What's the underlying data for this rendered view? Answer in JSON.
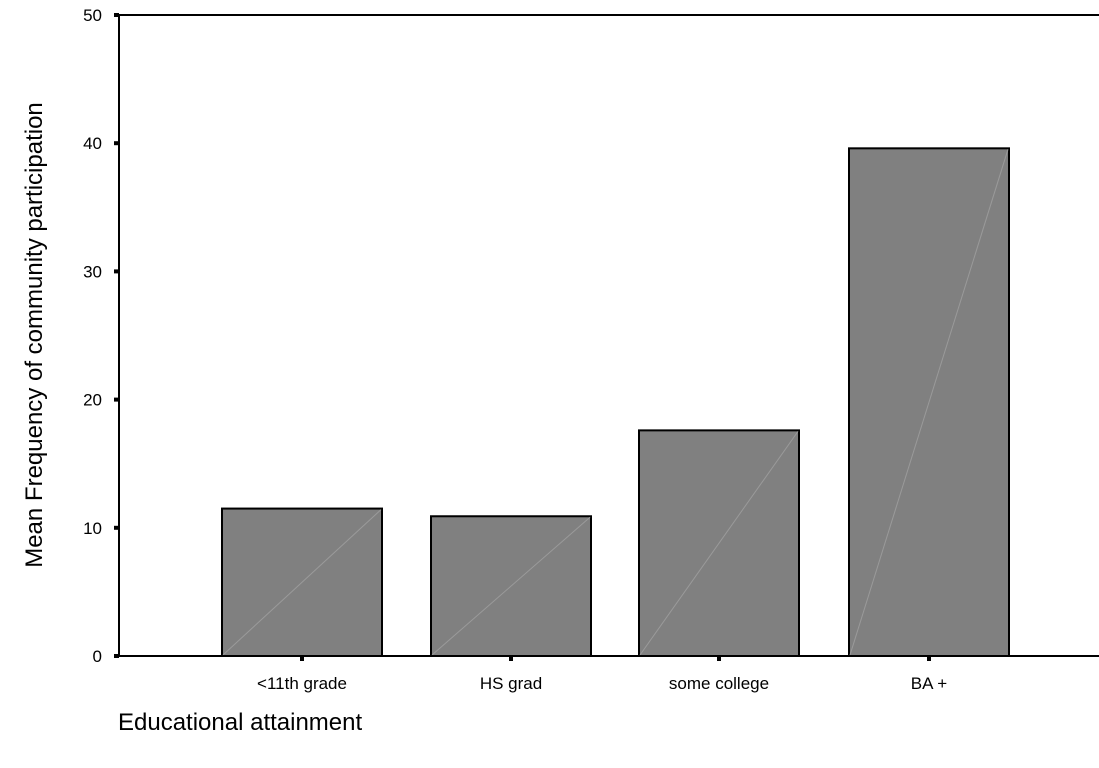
{
  "chart_data": {
    "type": "bar",
    "title": "",
    "xlabel": "Educational attainment",
    "ylabel": "Mean Frequency of community participation",
    "categories": [
      "<11th grade",
      "HS grad",
      "some college",
      "BA +"
    ],
    "values": [
      11.5,
      10.9,
      17.6,
      39.6
    ],
    "ylim": [
      0,
      50
    ],
    "yticks": [
      0,
      10,
      20,
      30,
      40,
      50
    ],
    "grid": false,
    "colors": {
      "bar": "#808080",
      "bar_outline": "#000000",
      "axis": "#000000"
    }
  }
}
